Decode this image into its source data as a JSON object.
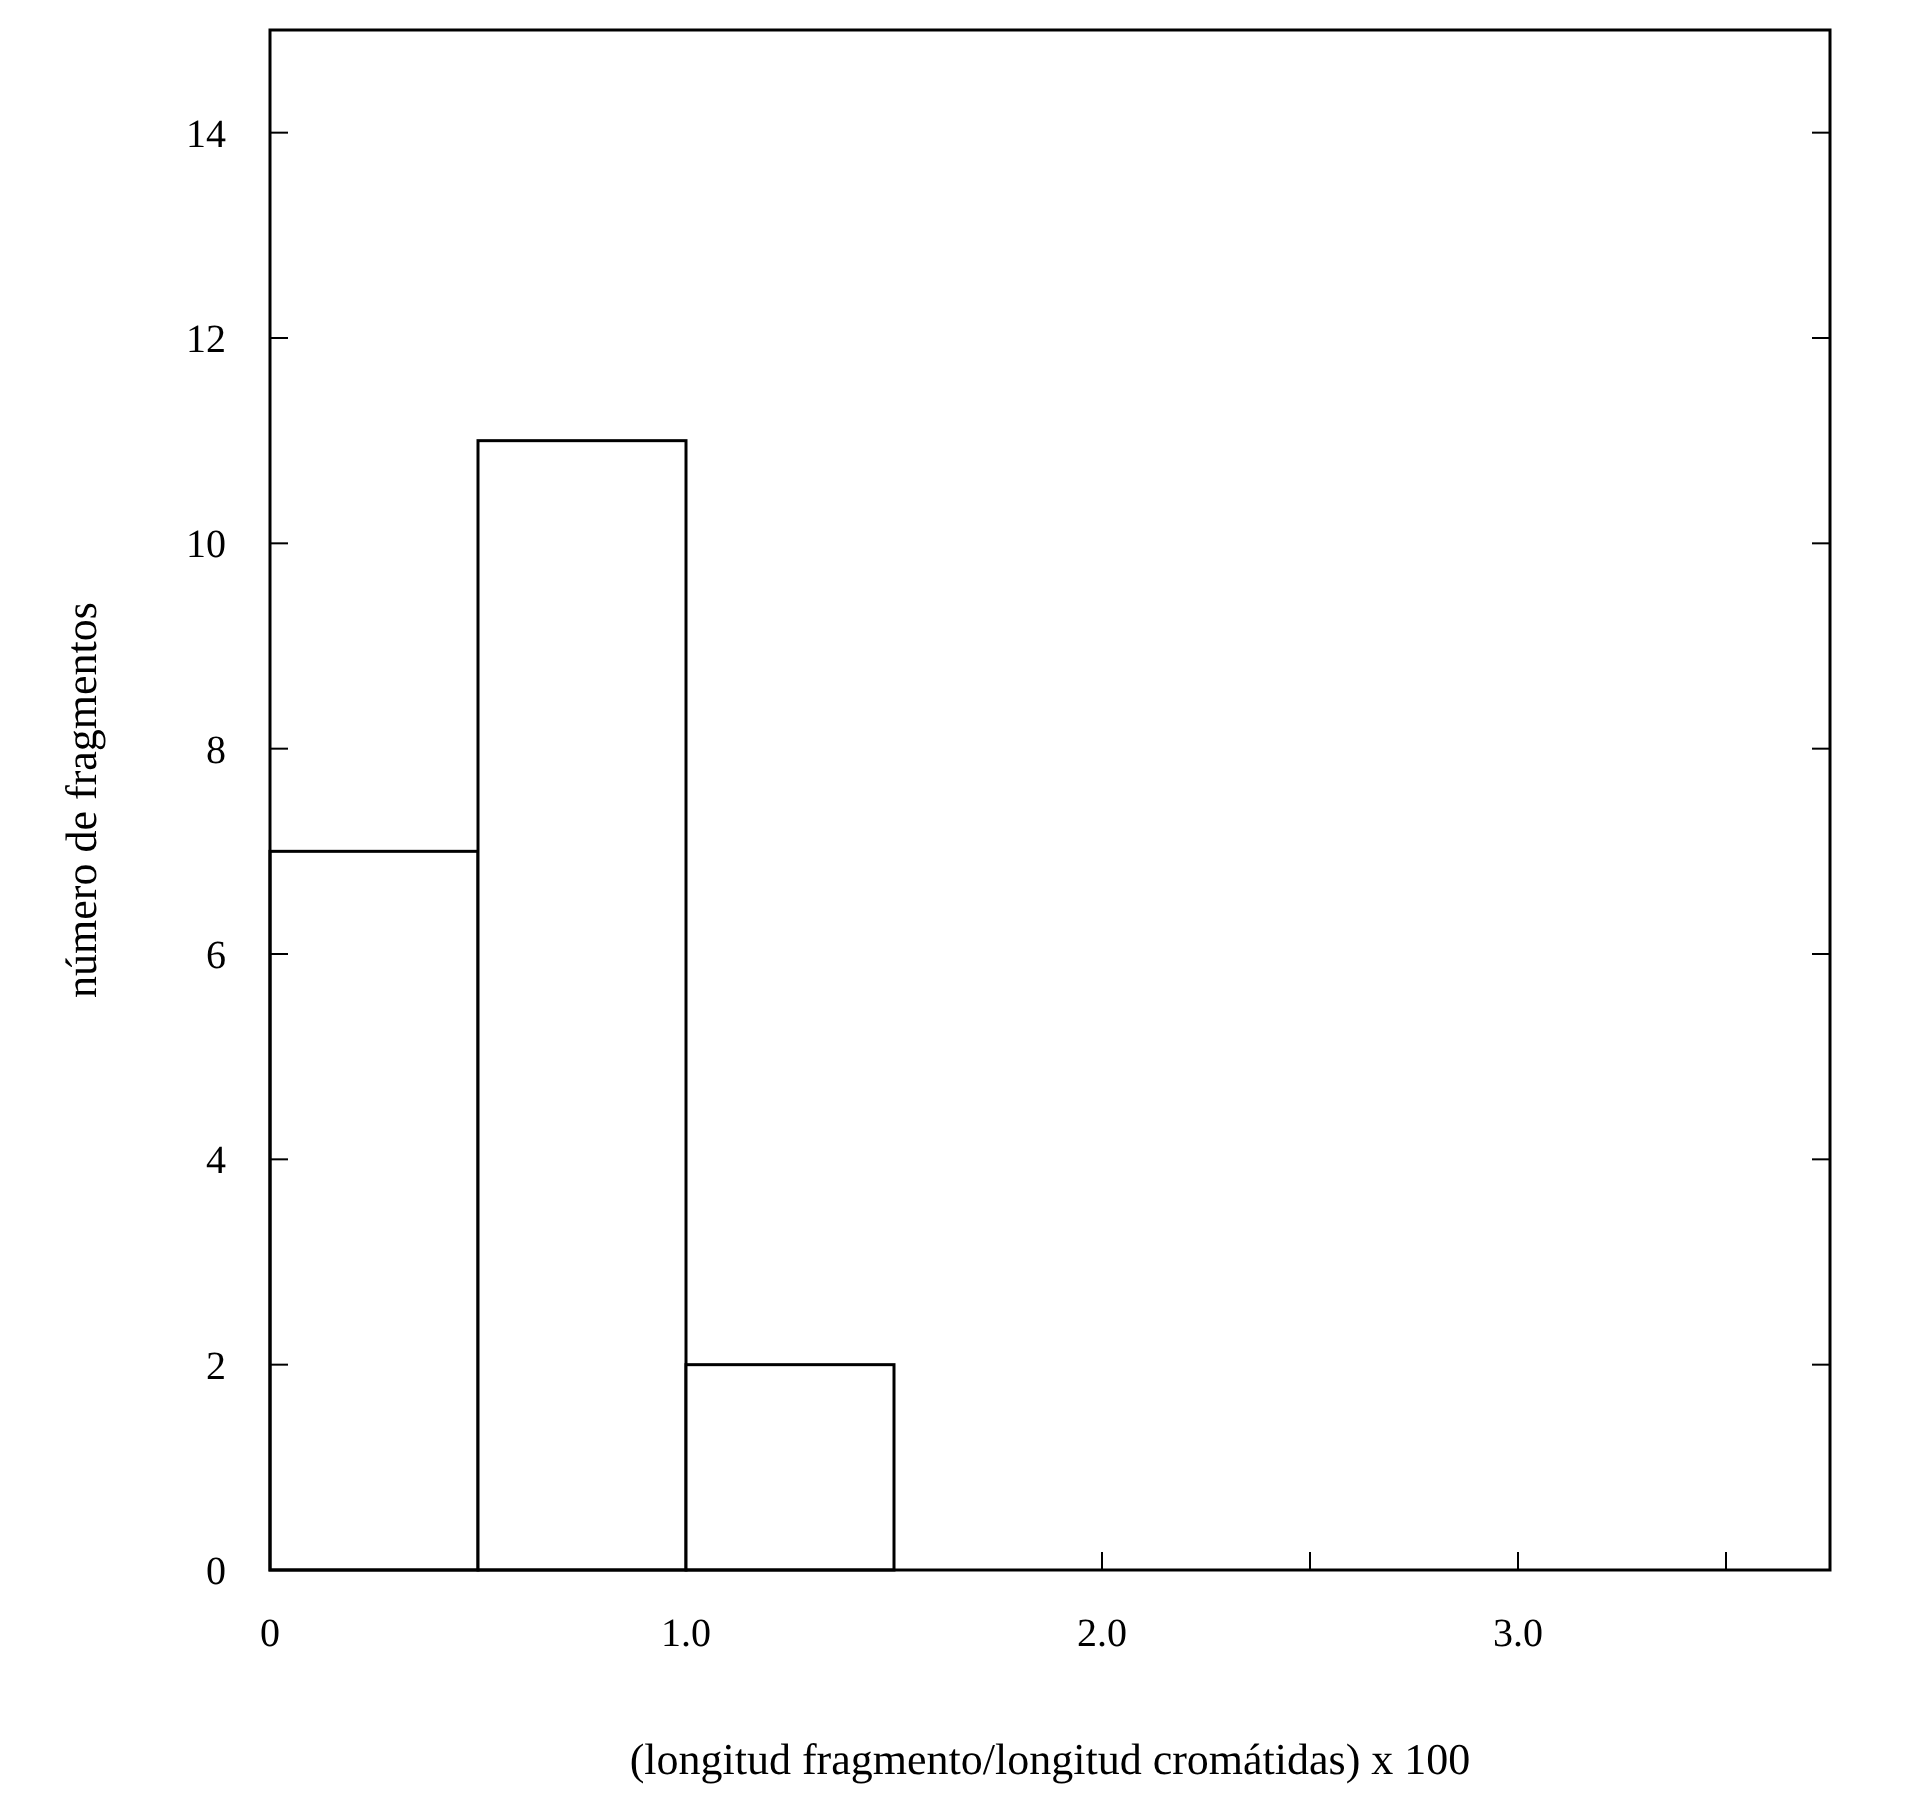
{
  "chart_data": {
    "type": "histogram",
    "xlabel": "(longitud fragmento/longitud cromátidas) x 100",
    "ylabel": "número de fragmentos",
    "bins": [
      0,
      0.5,
      1.0,
      1.5
    ],
    "values": [
      7,
      11,
      2
    ],
    "color": "#ffffff",
    "xlim": [
      0,
      3.75
    ],
    "xticks": [
      0,
      {
        "value": 0.5,
        "label": null
      },
      {
        "value": 1,
        "label": "1.0"
      },
      {
        "value": 1.5,
        "label": null
      },
      {
        "value": 2,
        "label": "2.0"
      },
      {
        "value": 2.5,
        "label": null
      },
      {
        "value": 3,
        "label": "3.0"
      },
      {
        "value": 3.5,
        "label": null
      }
    ],
    "ylim": [
      0,
      15
    ],
    "yticks": [
      0,
      2,
      4,
      6,
      8,
      10,
      12,
      14
    ],
    "grid": false
  }
}
